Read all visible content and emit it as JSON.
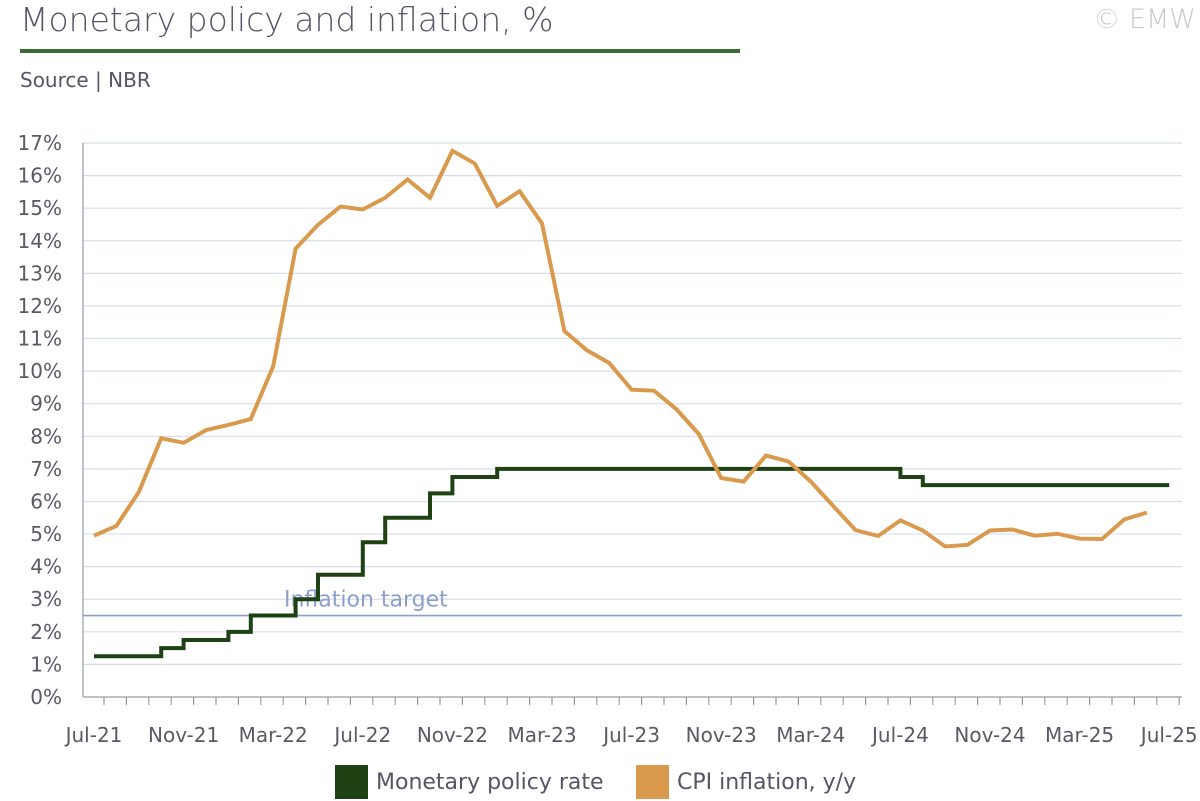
{
  "header": {
    "title": "Monetary policy and inflation, %",
    "source": "Source | NBR",
    "copyright": "© EMW"
  },
  "colors": {
    "policy_rate": "#1e4214",
    "cpi": "#d99a4d",
    "target": "#8b9fcc",
    "title_rule": "#3a6b35",
    "grid": "#d7dded"
  },
  "chart_data": {
    "type": "line",
    "title": "Monetary policy and inflation, %",
    "ylim": [
      0,
      17
    ],
    "yticks": [
      "0%",
      "1%",
      "2%",
      "3%",
      "4%",
      "5%",
      "6%",
      "7%",
      "8%",
      "9%",
      "10%",
      "11%",
      "12%",
      "13%",
      "14%",
      "15%",
      "16%",
      "17%"
    ],
    "x_months": [
      "Jul-21",
      "Aug-21",
      "Sep-21",
      "Oct-21",
      "Nov-21",
      "Dec-21",
      "Jan-22",
      "Feb-22",
      "Mar-22",
      "Apr-22",
      "May-22",
      "Jun-22",
      "Jul-22",
      "Aug-22",
      "Sep-22",
      "Oct-22",
      "Nov-22",
      "Dec-22",
      "Jan-23",
      "Feb-23",
      "Mar-23",
      "Apr-23",
      "May-23",
      "Jun-23",
      "Jul-23",
      "Aug-23",
      "Sep-23",
      "Oct-23",
      "Nov-23",
      "Dec-23",
      "Jan-24",
      "Feb-24",
      "Mar-24",
      "Apr-24",
      "May-24",
      "Jun-24",
      "Jul-24",
      "Aug-24",
      "Sep-24",
      "Oct-24",
      "Nov-24",
      "Dec-24",
      "Jan-25",
      "Feb-25",
      "Mar-25",
      "Apr-25",
      "May-25",
      "Jun-25",
      "Jul-25"
    ],
    "xtick_labels": [
      "Jul-21",
      "Nov-21",
      "Mar-22",
      "Jul-22",
      "Nov-22",
      "Mar-23",
      "Jul-23",
      "Nov-23",
      "Mar-24",
      "Jul-24",
      "Nov-24",
      "Mar-25",
      "Jul-25"
    ],
    "grid": true,
    "legend_position": "bottom",
    "series": [
      {
        "name": "Monetary policy rate",
        "style": "step",
        "values": [
          1.25,
          1.25,
          1.25,
          1.5,
          1.75,
          1.75,
          2.0,
          2.5,
          2.5,
          3.0,
          3.75,
          3.75,
          4.75,
          5.5,
          5.5,
          6.25,
          6.75,
          6.75,
          7.0,
          7.0,
          7.0,
          7.0,
          7.0,
          7.0,
          7.0,
          7.0,
          7.0,
          7.0,
          7.0,
          7.0,
          7.0,
          7.0,
          7.0,
          7.0,
          7.0,
          7.0,
          6.75,
          6.5,
          6.5,
          6.5,
          6.5,
          6.5,
          6.5,
          6.5,
          6.5,
          6.5,
          6.5,
          6.5,
          6.5
        ]
      },
      {
        "name": "CPI inflation, y/y",
        "style": "line",
        "values": [
          4.95,
          5.25,
          6.29,
          7.94,
          7.8,
          8.19,
          8.35,
          8.53,
          10.15,
          13.76,
          14.49,
          15.05,
          14.96,
          15.32,
          15.88,
          15.32,
          16.76,
          16.37,
          15.07,
          15.52,
          14.53,
          11.23,
          10.64,
          10.25,
          9.43,
          9.4,
          8.83,
          8.07,
          6.72,
          6.61,
          7.41,
          7.23,
          6.61,
          5.86,
          5.12,
          4.94,
          5.42,
          5.11,
          4.62,
          4.67,
          5.11,
          5.14,
          4.95,
          5.01,
          4.86,
          4.85,
          5.45,
          5.66,
          null
        ]
      }
    ],
    "annotations": [
      {
        "text": "Inflation target",
        "value": 2.5
      }
    ]
  },
  "legend": {
    "items": [
      {
        "label": "Monetary policy rate"
      },
      {
        "label": "CPI inflation, y/y"
      }
    ]
  }
}
